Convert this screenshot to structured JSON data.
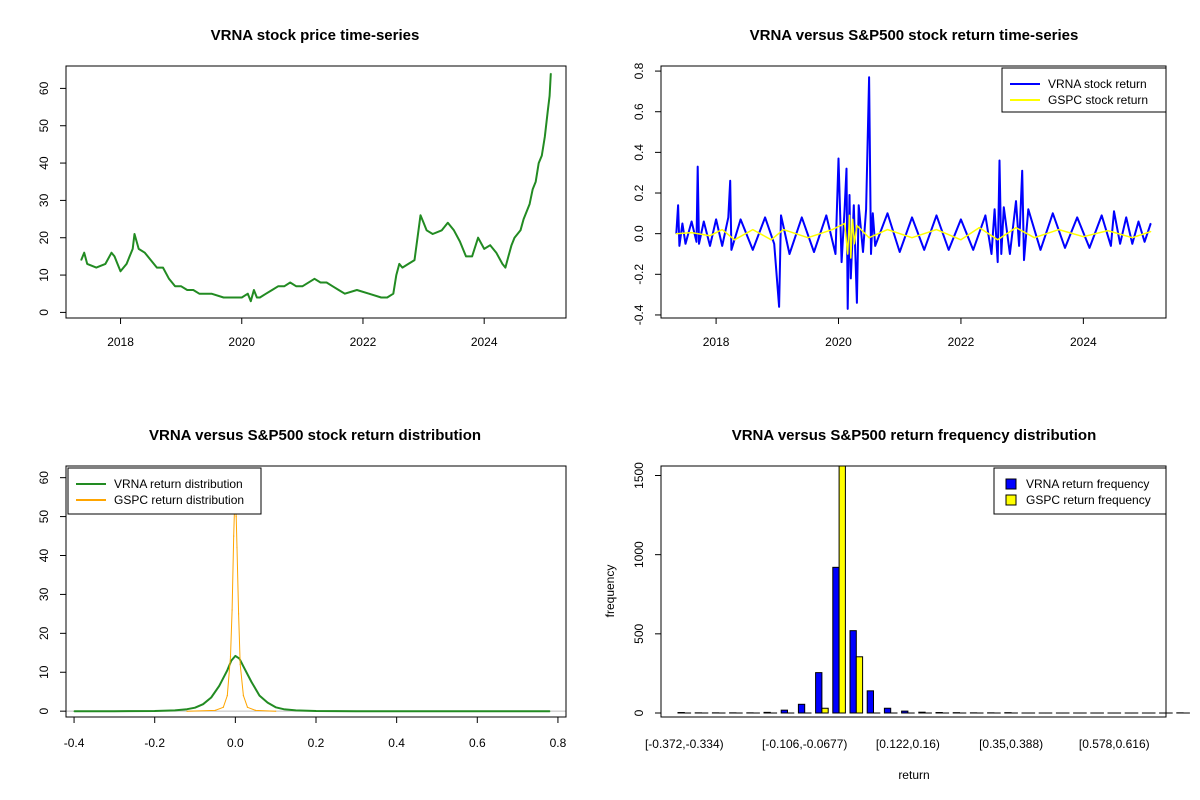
{
  "chart_data": [
    {
      "type": "line",
      "title": "VRNA stock price time-series",
      "xlabel": "",
      "ylabel": "",
      "xlim": [
        2017.1,
        2025.35
      ],
      "ylim": [
        -1.5,
        66
      ],
      "xticks": [
        {
          "v": 2018,
          "label": "2018"
        },
        {
          "v": 2020,
          "label": "2020"
        },
        {
          "v": 2022,
          "label": "2022"
        },
        {
          "v": 2024,
          "label": "2024"
        }
      ],
      "yticks": [
        {
          "v": 0,
          "label": "0"
        },
        {
          "v": 10,
          "label": "10"
        },
        {
          "v": 20,
          "label": "20"
        },
        {
          "v": 30,
          "label": "30"
        },
        {
          "v": 40,
          "label": "40"
        },
        {
          "v": 50,
          "label": "50"
        },
        {
          "v": 60,
          "label": "60"
        }
      ],
      "series": [
        {
          "color": "#228B22",
          "x": [
            2017.35,
            2017.4,
            2017.45,
            2017.6,
            2017.75,
            2017.85,
            2017.9,
            2017.95,
            2018.0,
            2018.1,
            2018.15,
            2018.2,
            2018.23,
            2018.3,
            2018.4,
            2018.5,
            2018.6,
            2018.7,
            2018.8,
            2018.9,
            2019.0,
            2019.1,
            2019.2,
            2019.3,
            2019.5,
            2019.7,
            2019.9,
            2020.0,
            2020.1,
            2020.15,
            2020.2,
            2020.25,
            2020.3,
            2020.4,
            2020.5,
            2020.6,
            2020.7,
            2020.8,
            2020.9,
            2021.0,
            2021.2,
            2021.3,
            2021.4,
            2021.5,
            2021.6,
            2021.7,
            2021.9,
            2022.1,
            2022.3,
            2022.4,
            2022.5,
            2022.55,
            2022.6,
            2022.65,
            2022.75,
            2022.85,
            2022.9,
            2022.95,
            2023.0,
            2023.05,
            2023.15,
            2023.3,
            2023.4,
            2023.5,
            2023.6,
            2023.7,
            2023.8,
            2023.9,
            2024.0,
            2024.1,
            2024.2,
            2024.3,
            2024.35,
            2024.4,
            2024.45,
            2024.5,
            2024.55,
            2024.6,
            2024.65,
            2024.7,
            2024.75,
            2024.8,
            2024.85,
            2024.9,
            2024.95,
            2025.0,
            2025.05,
            2025.08,
            2025.1
          ],
          "y": [
            14,
            16,
            13,
            12,
            13,
            16,
            15,
            13,
            11,
            13,
            15,
            17,
            21,
            17,
            16,
            14,
            12,
            12,
            9,
            7,
            7,
            6,
            6,
            5,
            5,
            4,
            4,
            4,
            5,
            3,
            6,
            4,
            4,
            5,
            6,
            7,
            7,
            8,
            7,
            7,
            9,
            8,
            8,
            7,
            6,
            5,
            6,
            5,
            4,
            4,
            5,
            10,
            13,
            12,
            13,
            14,
            20,
            26,
            24,
            22,
            21,
            22,
            24,
            22,
            19,
            15,
            15,
            20,
            17,
            18,
            16,
            13,
            12,
            15,
            18,
            20,
            21,
            22,
            25,
            27,
            29,
            33,
            35,
            40,
            42,
            47,
            54,
            58,
            64
          ]
        }
      ]
    },
    {
      "type": "line",
      "title": "VRNA versus S&P500 stock return time-series",
      "xlabel": "",
      "ylabel": "",
      "xlim": [
        2017.1,
        2025.35
      ],
      "ylim": [
        -0.415,
        0.825
      ],
      "xticks": [
        {
          "v": 2018,
          "label": "2018"
        },
        {
          "v": 2020,
          "label": "2020"
        },
        {
          "v": 2022,
          "label": "2022"
        },
        {
          "v": 2024,
          "label": "2024"
        }
      ],
      "yticks": [
        {
          "v": -0.4,
          "label": "-0.4"
        },
        {
          "v": -0.2,
          "label": "-0.2"
        },
        {
          "v": 0.0,
          "label": "0.0"
        },
        {
          "v": 0.2,
          "label": "0.2"
        },
        {
          "v": 0.4,
          "label": "0.4"
        },
        {
          "v": 0.6,
          "label": "0.6"
        },
        {
          "v": 0.8,
          "label": "0.8"
        }
      ],
      "legend": {
        "position": "top-right",
        "entries": [
          {
            "label": "VRNA stock return",
            "color": "#0000FF"
          },
          {
            "label": "GSPC stock return",
            "color": "#FFFF00"
          }
        ]
      },
      "series": [
        {
          "name": "VRNA stock return",
          "color": "#0000FF",
          "x": [
            2017.35,
            2017.38,
            2017.4,
            2017.45,
            2017.5,
            2017.6,
            2017.68,
            2017.7,
            2017.72,
            2017.8,
            2017.9,
            2018.0,
            2018.1,
            2018.2,
            2018.23,
            2018.25,
            2018.4,
            2018.6,
            2018.8,
            2018.95,
            2019.03,
            2019.06,
            2019.2,
            2019.4,
            2019.6,
            2019.8,
            2019.95,
            2020.0,
            2020.05,
            2020.1,
            2020.13,
            2020.15,
            2020.18,
            2020.2,
            2020.25,
            2020.3,
            2020.33,
            2020.4,
            2020.45,
            2020.5,
            2020.53,
            2020.56,
            2020.6,
            2020.8,
            2021.0,
            2021.2,
            2021.4,
            2021.6,
            2021.8,
            2022.0,
            2022.2,
            2022.4,
            2022.5,
            2022.55,
            2022.6,
            2022.63,
            2022.66,
            2022.7,
            2022.8,
            2022.9,
            2022.95,
            2023.0,
            2023.03,
            2023.1,
            2023.3,
            2023.5,
            2023.7,
            2023.9,
            2024.1,
            2024.3,
            2024.45,
            2024.5,
            2024.6,
            2024.7,
            2024.8,
            2024.9,
            2025.0,
            2025.1
          ],
          "y": [
            0.0,
            0.14,
            -0.06,
            0.05,
            -0.05,
            0.06,
            -0.04,
            0.33,
            -0.05,
            0.06,
            -0.06,
            0.07,
            -0.06,
            0.08,
            0.26,
            -0.08,
            0.07,
            -0.08,
            0.08,
            -0.05,
            -0.36,
            0.09,
            -0.1,
            0.08,
            -0.09,
            0.09,
            -0.1,
            0.37,
            -0.14,
            0.12,
            0.32,
            -0.37,
            0.19,
            -0.22,
            0.14,
            -0.34,
            0.14,
            -0.09,
            0.12,
            0.77,
            -0.1,
            0.1,
            -0.06,
            0.1,
            -0.09,
            0.08,
            -0.08,
            0.09,
            -0.08,
            0.07,
            -0.08,
            0.09,
            -0.1,
            0.12,
            -0.14,
            0.36,
            -0.1,
            0.13,
            -0.1,
            0.16,
            -0.06,
            0.31,
            -0.13,
            0.12,
            -0.08,
            0.1,
            -0.07,
            0.08,
            -0.07,
            0.09,
            -0.06,
            0.11,
            -0.05,
            0.08,
            -0.05,
            0.06,
            -0.04,
            0.05
          ]
        },
        {
          "name": "GSPC stock return",
          "color": "#FFFF00",
          "x": [
            2017.35,
            2017.6,
            2017.9,
            2018.1,
            2018.3,
            2018.6,
            2018.9,
            2019.1,
            2019.5,
            2019.9,
            2020.1,
            2020.15,
            2020.18,
            2020.2,
            2020.23,
            2020.26,
            2020.3,
            2020.5,
            2020.8,
            2021.2,
            2021.6,
            2022.0,
            2022.3,
            2022.6,
            2022.9,
            2023.2,
            2023.6,
            2024.0,
            2024.4,
            2024.8,
            2025.1
          ],
          "y": [
            0.0,
            0.005,
            -0.01,
            0.02,
            -0.03,
            0.02,
            -0.03,
            0.02,
            -0.02,
            0.02,
            0.05,
            -0.1,
            0.09,
            -0.12,
            0.07,
            -0.05,
            0.04,
            -0.02,
            0.02,
            -0.02,
            0.02,
            -0.03,
            0.03,
            -0.03,
            0.03,
            -0.02,
            0.02,
            -0.015,
            0.015,
            -0.02,
            0.01
          ]
        }
      ]
    },
    {
      "type": "line",
      "title": "VRNA versus S&P500 stock return distribution",
      "xlabel": "",
      "ylabel": "",
      "xlim": [
        -0.42,
        0.82
      ],
      "ylim": [
        -1.5,
        63
      ],
      "xticks": [
        {
          "v": -0.4,
          "label": "-0.4"
        },
        {
          "v": -0.2,
          "label": "-0.2"
        },
        {
          "v": 0.0,
          "label": "0.0"
        },
        {
          "v": 0.2,
          "label": "0.2"
        },
        {
          "v": 0.4,
          "label": "0.4"
        },
        {
          "v": 0.6,
          "label": "0.6"
        },
        {
          "v": 0.8,
          "label": "0.8"
        }
      ],
      "yticks": [
        {
          "v": 0,
          "label": "0"
        },
        {
          "v": 10,
          "label": "10"
        },
        {
          "v": 20,
          "label": "20"
        },
        {
          "v": 30,
          "label": "30"
        },
        {
          "v": 40,
          "label": "40"
        },
        {
          "v": 50,
          "label": "50"
        },
        {
          "v": 60,
          "label": "60"
        }
      ],
      "legend": {
        "position": "top-left",
        "entries": [
          {
            "label": "VRNA return distribution",
            "color": "#228B22"
          },
          {
            "label": "GSPC return distribution",
            "color": "#FFA500"
          }
        ]
      },
      "series": [
        {
          "name": "VRNA return distribution",
          "color": "#228B22",
          "x": [
            -0.4,
            -0.3,
            -0.2,
            -0.15,
            -0.12,
            -0.1,
            -0.08,
            -0.06,
            -0.04,
            -0.02,
            -0.01,
            0.0,
            0.01,
            0.02,
            0.04,
            0.06,
            0.08,
            0.1,
            0.12,
            0.15,
            0.2,
            0.3,
            0.5,
            0.78
          ],
          "y": [
            0,
            0,
            0.05,
            0.2,
            0.5,
            0.9,
            1.8,
            3.5,
            6.5,
            10.5,
            13.0,
            14.2,
            13.5,
            11.5,
            7.5,
            4.0,
            2.2,
            1.0,
            0.5,
            0.2,
            0.05,
            0,
            0,
            0
          ]
        },
        {
          "name": "GSPC return distribution",
          "color": "#FFA500",
          "x": [
            -0.12,
            -0.05,
            -0.03,
            -0.02,
            -0.012,
            -0.008,
            -0.004,
            -0.002,
            0.0,
            0.002,
            0.004,
            0.008,
            0.012,
            0.02,
            0.03,
            0.05,
            0.1
          ],
          "y": [
            0,
            0.2,
            1.0,
            4.0,
            14.0,
            26.0,
            45.0,
            52.0,
            54.0,
            50.0,
            42.0,
            25.0,
            12.0,
            4.0,
            1.0,
            0.2,
            0
          ]
        }
      ]
    },
    {
      "type": "bar",
      "title": "VRNA versus S&P500 return frequency distribution",
      "xlabel": "return",
      "ylabel": "frequency",
      "ylim": [
        0,
        1560
      ],
      "yticks": [
        {
          "v": 0,
          "label": "0"
        },
        {
          "v": 500,
          "label": "500"
        },
        {
          "v": 1000,
          "label": "1000"
        },
        {
          "v": 1500,
          "label": "1500"
        }
      ],
      "categories": [
        "[-0.372,-0.334)",
        "[-0.334,-0.296)",
        "[-0.296,-0.258)",
        "[-0.258,-0.22)",
        "[-0.22,-0.182)",
        "[-0.182,-0.144)",
        "[-0.144,-0.106)",
        "[-0.106,-0.0677)",
        "[-0.0677,-0.0297)",
        "[-0.0297,0.00827)",
        "[0.00827,0.0463)",
        "[0.0463,0.0843)",
        "[0.0843,0.122)",
        "[0.122,0.16)",
        "[0.16,0.198)",
        "[0.198,0.236)",
        "[0.236,0.274)",
        "[0.274,0.312)",
        "[0.312,0.35)",
        "[0.35,0.388)",
        "[0.388,0.426)",
        "[0.426,0.464)",
        "[0.464,0.502)",
        "[0.502,0.54)",
        "[0.54,0.578)",
        "[0.578,0.616)",
        "[0.616,0.654)",
        "[0.654,0.692)",
        "[0.692,0.73)",
        "[0.73,0.768)"
      ],
      "visible_category_labels": [
        0,
        7,
        13,
        19,
        25
      ],
      "legend": {
        "position": "top-right",
        "entries": [
          {
            "label": "VRNA return frequency",
            "color": "#0000FF"
          },
          {
            "label": "GSPC return frequency",
            "color": "#FFFF00"
          }
        ]
      },
      "series": [
        {
          "name": "VRNA return frequency",
          "color": "#0000FF",
          "values": [
            3,
            1,
            1,
            1,
            1,
            4,
            18,
            55,
            255,
            920,
            520,
            140,
            30,
            12,
            5,
            3,
            2,
            1,
            1,
            2,
            0,
            0,
            0,
            0,
            0,
            0,
            0,
            0,
            0,
            1
          ]
        },
        {
          "name": "GSPC return frequency",
          "color": "#FFFF00",
          "values": [
            0,
            0,
            0,
            0,
            0,
            0,
            0,
            0,
            30,
            1560,
            355,
            0,
            0,
            0,
            0,
            0,
            0,
            0,
            0,
            0,
            0,
            0,
            0,
            0,
            0,
            0,
            0,
            0,
            0,
            0
          ]
        }
      ]
    }
  ]
}
